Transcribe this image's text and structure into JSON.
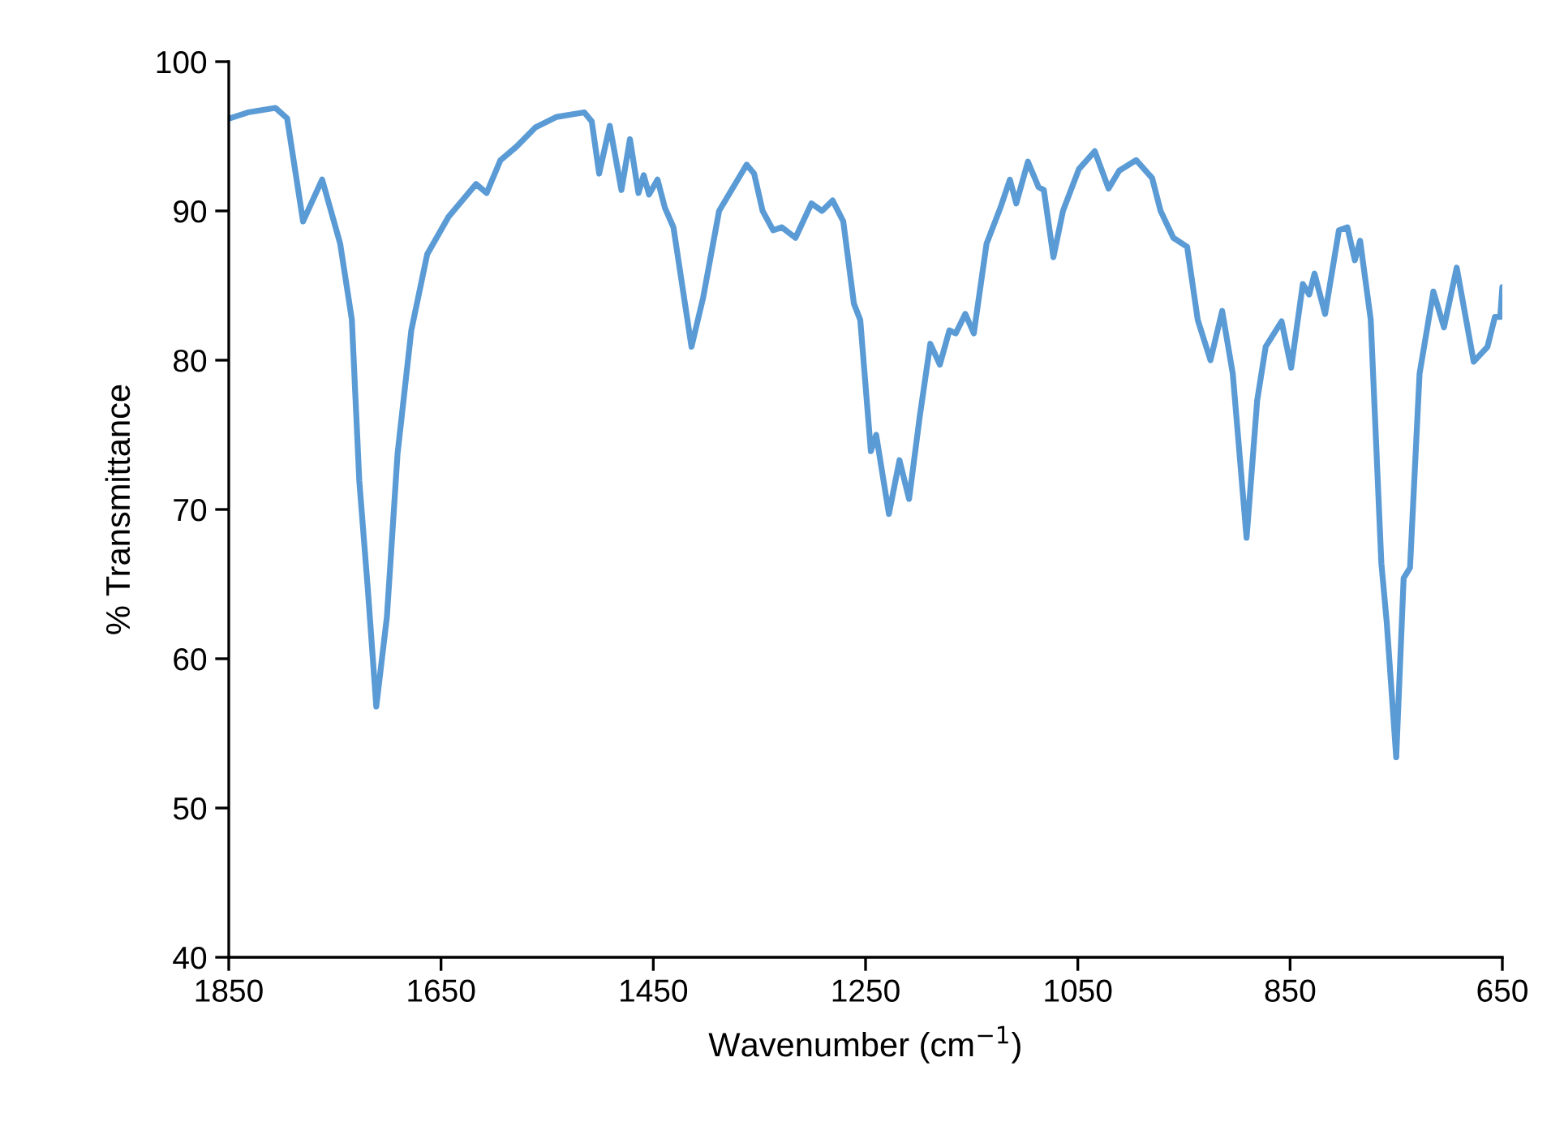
{
  "chart_data": {
    "type": "line",
    "xlabel": "Wavenumber (cm$^{−1}$)",
    "ylabel": "% Transmittance",
    "xlim": [
      1850,
      650
    ],
    "xticks": [
      1850,
      1650,
      1450,
      1250,
      1050,
      850,
      650
    ],
    "ylim": [
      40,
      100
    ],
    "yticks": [
      40,
      50,
      60,
      70,
      80,
      90,
      100
    ],
    "grid": false,
    "marker": "none",
    "line_style": "solid",
    "series": [
      {
        "color": "#5b9bd5",
        "x": [
          1849,
          1832,
          1806,
          1795,
          1780,
          1762,
          1745,
          1734,
          1727,
          1719,
          1711,
          1701,
          1691,
          1678,
          1663,
          1643,
          1617,
          1607,
          1594,
          1579,
          1561,
          1541,
          1515,
          1508,
          1501,
          1491,
          1480,
          1472,
          1464,
          1459,
          1454,
          1446,
          1439,
          1431,
          1414,
          1403,
          1388,
          1362,
          1355,
          1347,
          1337,
          1329,
          1316,
          1301,
          1291,
          1281,
          1271,
          1261,
          1255,
          1245,
          1240,
          1228,
          1218,
          1209,
          1199,
          1189,
          1180,
          1171,
          1165,
          1156,
          1148,
          1136,
          1123,
          1114,
          1108,
          1097,
          1087,
          1082,
          1073,
          1064,
          1049,
          1034,
          1021,
          1011,
          995,
          980,
          972,
          960,
          947,
          937,
          925,
          914,
          904,
          891,
          881,
          873,
          858,
          849,
          838,
          832,
          827,
          817,
          804,
          796,
          789,
          784,
          774,
          764,
          759,
          750,
          743,
          737,
          728,
          715,
          705,
          693,
          677,
          664,
          657,
          652,
          650
        ],
        "values": [
          96.2,
          96.6,
          96.9,
          96.2,
          89.3,
          92.1,
          87.8,
          82.7,
          71.9,
          64.7,
          56.8,
          62.8,
          73.7,
          82.0,
          87.1,
          89.6,
          91.8,
          91.2,
          93.4,
          94.3,
          95.6,
          96.3,
          96.6,
          96.0,
          92.5,
          95.7,
          91.4,
          94.8,
          91.2,
          92.4,
          91.1,
          92.1,
          90.2,
          88.9,
          80.9,
          84.2,
          90.0,
          93.1,
          92.5,
          90.0,
          88.7,
          88.9,
          88.2,
          90.5,
          90.0,
          90.7,
          89.3,
          83.8,
          82.7,
          73.9,
          75.0,
          69.7,
          73.3,
          70.7,
          76.2,
          81.1,
          79.7,
          82.0,
          81.8,
          83.1,
          81.8,
          87.8,
          90.2,
          92.1,
          90.5,
          93.3,
          91.6,
          91.4,
          86.9,
          90.0,
          92.8,
          94.0,
          91.5,
          92.7,
          93.4,
          92.2,
          90.0,
          88.2,
          87.6,
          82.7,
          80.0,
          83.3,
          79.1,
          68.1,
          77.3,
          80.9,
          82.6,
          79.5,
          85.1,
          84.4,
          85.8,
          83.1,
          88.7,
          88.9,
          86.7,
          88.0,
          82.7,
          66.4,
          62.5,
          53.4,
          65.4,
          66.1,
          79.1,
          84.6,
          82.2,
          86.2,
          79.9,
          80.9,
          82.9,
          82.9,
          84.9
        ]
      }
    ]
  }
}
